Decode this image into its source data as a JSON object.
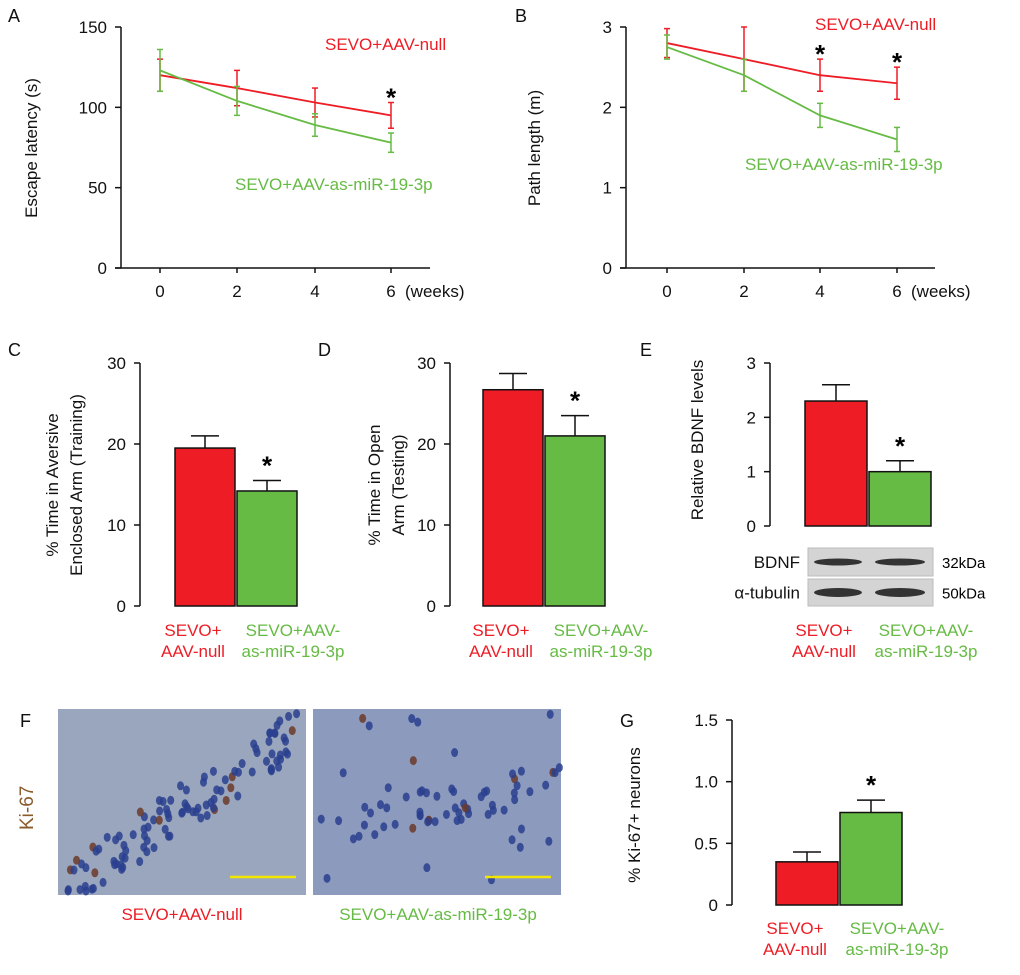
{
  "colors": {
    "red": "#ee1c25",
    "green": "#66bb44",
    "axis": "#111111",
    "ki67": "#8a5a2b",
    "scale_bar": "#f2e500"
  },
  "chart_data": [
    {
      "id": "A",
      "type": "line",
      "panel_label": "A",
      "x": [
        0,
        2,
        4,
        6
      ],
      "x_tick_labels": [
        "0",
        "2",
        "4",
        "6"
      ],
      "x_unit": "(weeks)",
      "ylabel": "Escape latency (s)",
      "ylim": [
        0,
        150
      ],
      "y_ticks": [
        0,
        50,
        100,
        150
      ],
      "series": [
        {
          "name": "SEVO+AAV-null",
          "color": "red",
          "values": [
            120,
            112,
            103,
            95
          ],
          "errors": [
            10,
            11,
            9,
            8
          ]
        },
        {
          "name": "SEVO+AAV-as-miR-19-3p",
          "color": "green",
          "values": [
            123,
            104,
            89,
            78
          ],
          "errors": [
            13,
            9,
            7,
            6
          ]
        }
      ],
      "significance": [
        {
          "x": 6,
          "mark": "*"
        }
      ]
    },
    {
      "id": "B",
      "type": "line",
      "panel_label": "B",
      "x": [
        0,
        2,
        4,
        6
      ],
      "x_tick_labels": [
        "0",
        "2",
        "4",
        "6"
      ],
      "x_unit": "(weeks)",
      "ylabel": "Path length (m)",
      "ylim": [
        0,
        3
      ],
      "y_ticks": [
        0,
        1,
        2,
        3
      ],
      "series": [
        {
          "name": "SEVO+AAV-null",
          "color": "red",
          "values": [
            2.8,
            2.6,
            2.4,
            2.3
          ],
          "errors": [
            0.18,
            0.4,
            0.2,
            0.2
          ]
        },
        {
          "name": "SEVO+AAV-as-miR-19-3p",
          "color": "green",
          "values": [
            2.75,
            2.4,
            1.9,
            1.6
          ],
          "errors": [
            0.15,
            0.2,
            0.15,
            0.15
          ]
        }
      ],
      "significance": [
        {
          "x": 4,
          "mark": "*"
        },
        {
          "x": 6,
          "mark": "*"
        }
      ]
    },
    {
      "id": "C",
      "type": "bar",
      "panel_label": "C",
      "ylabel_lines": [
        "% Time in Aversive",
        "Enclosed Arm (Training)"
      ],
      "ylim": [
        0,
        30
      ],
      "y_ticks": [
        0,
        10,
        20,
        30
      ],
      "categories": [
        [
          "SEVO+",
          "AAV-null"
        ],
        [
          "SEVO+AAV-",
          "as-miR-19-3p"
        ]
      ],
      "values": [
        19.5,
        14.2
      ],
      "errors": [
        1.5,
        1.3
      ],
      "bar_colors": [
        "red",
        "green"
      ],
      "significance": [
        {
          "bar": 1,
          "mark": "*"
        }
      ]
    },
    {
      "id": "D",
      "type": "bar",
      "panel_label": "D",
      "ylabel_lines": [
        "% Time in Open",
        "Arm (Testing)"
      ],
      "ylim": [
        0,
        30
      ],
      "y_ticks": [
        0,
        10,
        20,
        30
      ],
      "categories": [
        [
          "SEVO+",
          "AAV-null"
        ],
        [
          "SEVO+AAV-",
          "as-miR-19-3p"
        ]
      ],
      "values": [
        26.7,
        21.0
      ],
      "errors": [
        2.0,
        2.5
      ],
      "bar_colors": [
        "red",
        "green"
      ],
      "significance": [
        {
          "bar": 1,
          "mark": "*"
        }
      ]
    },
    {
      "id": "E",
      "type": "bar",
      "panel_label": "E",
      "ylabel_lines": [
        "Relative BDNF levels"
      ],
      "ylim": [
        0,
        3
      ],
      "y_ticks": [
        0,
        1,
        2,
        3
      ],
      "categories": [
        [
          "SEVO+",
          "AAV-null"
        ],
        [
          "SEVO+AAV-",
          "as-miR-19-3p"
        ]
      ],
      "values": [
        2.3,
        1.0
      ],
      "errors": [
        0.3,
        0.2
      ],
      "bar_colors": [
        "red",
        "green"
      ],
      "significance": [
        {
          "bar": 1,
          "mark": "*"
        }
      ],
      "blot": [
        {
          "protein": "BDNF",
          "size": "32kDa"
        },
        {
          "protein": "α-tubulin",
          "size": "50kDa"
        }
      ]
    },
    {
      "id": "G",
      "type": "bar",
      "panel_label": "G",
      "ylabel_lines": [
        "% Ki-67+ neurons"
      ],
      "ylim": [
        0,
        1.5
      ],
      "y_ticks": [
        0,
        0.5,
        1.0,
        1.5
      ],
      "y_tick_labels": [
        "0",
        "0.5",
        "1.0",
        "1.5"
      ],
      "categories": [
        [
          "SEVO+",
          "AAV-null"
        ],
        [
          "SEVO+AAV-",
          "as-miR-19-3p"
        ]
      ],
      "values": [
        0.35,
        0.75
      ],
      "errors": [
        0.08,
        0.1
      ],
      "bar_colors": [
        "red",
        "green"
      ],
      "significance": [
        {
          "bar": 1,
          "mark": "*"
        }
      ]
    }
  ],
  "panel_f": {
    "panel_label": "F",
    "stain_label": "Ki-67",
    "images": [
      {
        "caption": "SEVO+AAV-null",
        "color": "red"
      },
      {
        "caption": "SEVO+AAV-as-miR-19-3p",
        "color": "green"
      }
    ]
  }
}
